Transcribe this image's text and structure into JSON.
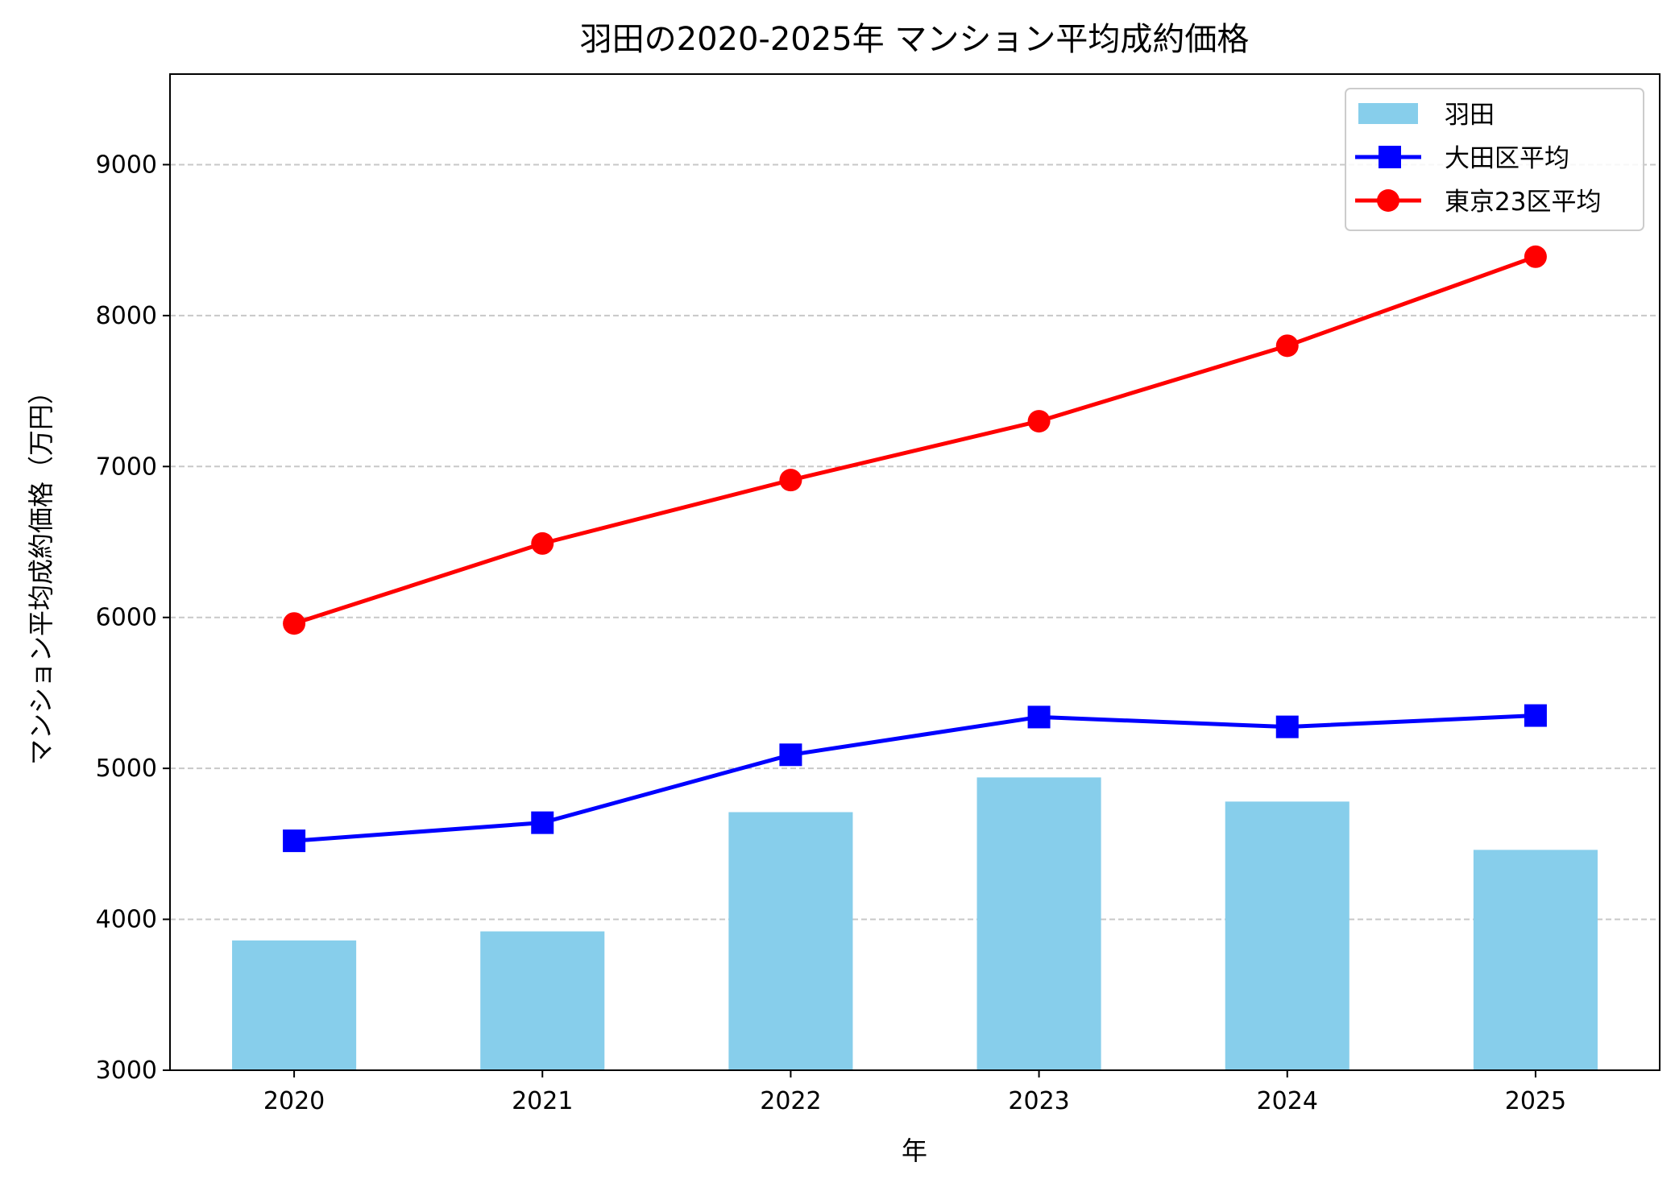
{
  "chart_data": {
    "type": "bar+line",
    "title": "羽田の2020-2025年 マンション平均成約価格",
    "xlabel": "年",
    "ylabel": "マンション平均成約価格（万円）",
    "categories": [
      "2020",
      "2021",
      "2022",
      "2023",
      "2024",
      "2025"
    ],
    "ylim": [
      3000,
      9600
    ],
    "yticks": [
      3000,
      4000,
      5000,
      6000,
      7000,
      8000,
      9000
    ],
    "grid": "y, dashed",
    "legend_position": "top-right",
    "series": [
      {
        "name": "羽田",
        "kind": "bar",
        "color": "#87CEEB",
        "values": [
          3860,
          3920,
          4710,
          4940,
          4780,
          4460
        ]
      },
      {
        "name": "大田区平均",
        "kind": "line",
        "marker": "square",
        "color": "#0000FF",
        "values": [
          4520,
          4640,
          5090,
          5340,
          5275,
          5350
        ]
      },
      {
        "name": "東京23区平均",
        "kind": "line",
        "marker": "circle",
        "color": "#FF0000",
        "values": [
          5960,
          6490,
          6910,
          7300,
          7800,
          8390
        ]
      }
    ]
  }
}
